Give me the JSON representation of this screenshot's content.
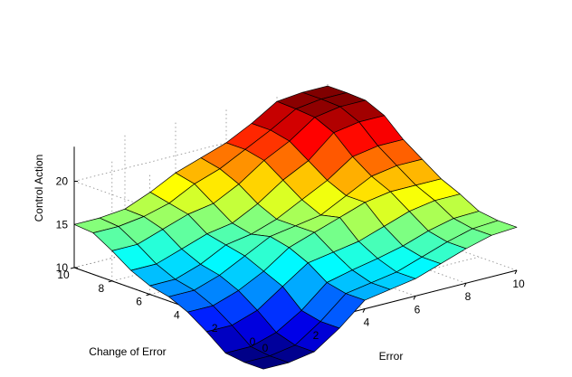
{
  "chart_data": {
    "type": "surface",
    "colormap": "jet",
    "x_label": "Error",
    "y_label": "Change of Error",
    "z_label": "Control Action",
    "x_range": [
      0,
      10
    ],
    "y_range": [
      0,
      10
    ],
    "z_range": [
      10,
      24
    ],
    "x_ticks": [
      "0",
      "2",
      "4",
      "6",
      "8",
      "10"
    ],
    "y_ticks": [
      "0",
      "2",
      "4",
      "6",
      "8",
      "10"
    ],
    "z_ticks": [
      "10",
      "15",
      "20"
    ],
    "grid": true,
    "mesh": {
      "x": [
        0,
        1,
        2,
        3,
        4,
        5,
        6,
        7,
        8,
        9,
        10
      ],
      "y": [
        0,
        1,
        2,
        3,
        4,
        5,
        6,
        7,
        8,
        9,
        10
      ],
      "z": [
        [
          6.0,
          6.0,
          6.5,
          8.5,
          11.0,
          11.5,
          12.0,
          13.0,
          14.0,
          14.8,
          15.0
        ],
        [
          6.0,
          6.0,
          6.5,
          8.5,
          11.0,
          11.5,
          12.0,
          13.0,
          14.0,
          14.8,
          15.0
        ],
        [
          6.3,
          6.3,
          7.2,
          9.0,
          11.5,
          12.2,
          12.8,
          13.5,
          14.5,
          15.2,
          15.3
        ],
        [
          8.0,
          8.0,
          9.0,
          11.0,
          13.0,
          13.5,
          14.0,
          15.0,
          16.0,
          16.5,
          16.5
        ],
        [
          9.5,
          9.5,
          10.5,
          12.0,
          14.0,
          15.0,
          16.0,
          17.0,
          17.5,
          17.5,
          17.5
        ],
        [
          10.5,
          10.5,
          11.5,
          13.0,
          14.5,
          15.0,
          15.5,
          17.0,
          18.5,
          19.0,
          19.0
        ],
        [
          11.0,
          11.0,
          12.0,
          13.5,
          14.0,
          15.0,
          16.5,
          18.0,
          20.0,
          20.5,
          20.5
        ],
        [
          12.0,
          12.0,
          13.0,
          14.0,
          14.5,
          16.0,
          18.0,
          19.5,
          22.0,
          22.5,
          22.5
        ],
        [
          13.5,
          13.5,
          14.5,
          15.5,
          16.0,
          17.5,
          19.5,
          21.0,
          23.0,
          23.5,
          23.5
        ],
        [
          14.8,
          14.8,
          15.2,
          16.0,
          17.5,
          18.5,
          20.0,
          21.5,
          23.2,
          23.6,
          23.6
        ],
        [
          15.0,
          15.0,
          15.3,
          16.5,
          18.0,
          19.0,
          20.0,
          21.5,
          23.3,
          23.6,
          23.6
        ]
      ]
    }
  }
}
